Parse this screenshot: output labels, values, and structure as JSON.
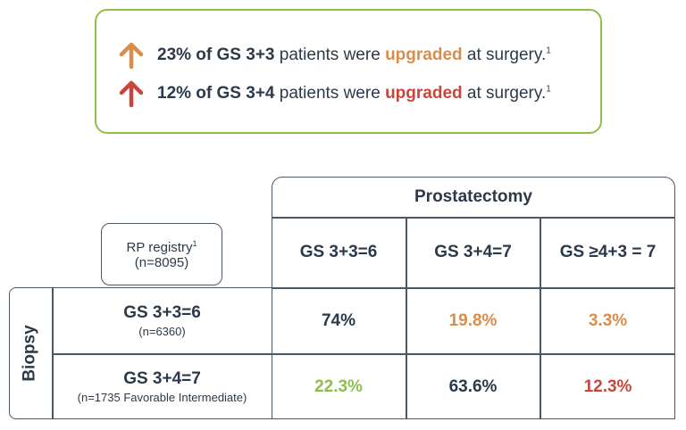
{
  "callout": {
    "stat1": {
      "pct": "23% of GS 3+3",
      "mid": " patients were ",
      "upgraded": "upgraded",
      "end": " at surgery.",
      "sup": "1"
    },
    "stat2": {
      "pct": "12% of GS 3+4",
      "mid": " patients were ",
      "upgraded": "upgraded",
      "end": " at surgery.",
      "sup": "1"
    }
  },
  "colors": {
    "green": "#8dc04a",
    "orange": "#d98d4a",
    "red": "#c8453b",
    "dark": "#2b3a4a"
  },
  "chart_data": {
    "type": "table",
    "title": "Prostatectomy",
    "row_group_label": "Biopsy",
    "registry": {
      "label": "RP registry",
      "sup": "1",
      "n": "(n=8095)"
    },
    "columns": [
      "GS 3+3=6",
      "GS 3+4=7",
      "GS ≥4+3 = 7"
    ],
    "rows": [
      {
        "label": "GS 3+3=6",
        "n": "(n=6360)",
        "values": [
          "74%",
          "19.8%",
          "3.3%"
        ],
        "colors": [
          "#2b3a4a",
          "#d98d4a",
          "#d98d4a"
        ]
      },
      {
        "label": "GS 3+4=7",
        "n": "(n=1735 Favorable Intermediate)",
        "values": [
          "22.3%",
          "63.6%",
          "12.3%"
        ],
        "colors": [
          "#8dc04a",
          "#2b3a4a",
          "#c8453b"
        ]
      }
    ]
  }
}
